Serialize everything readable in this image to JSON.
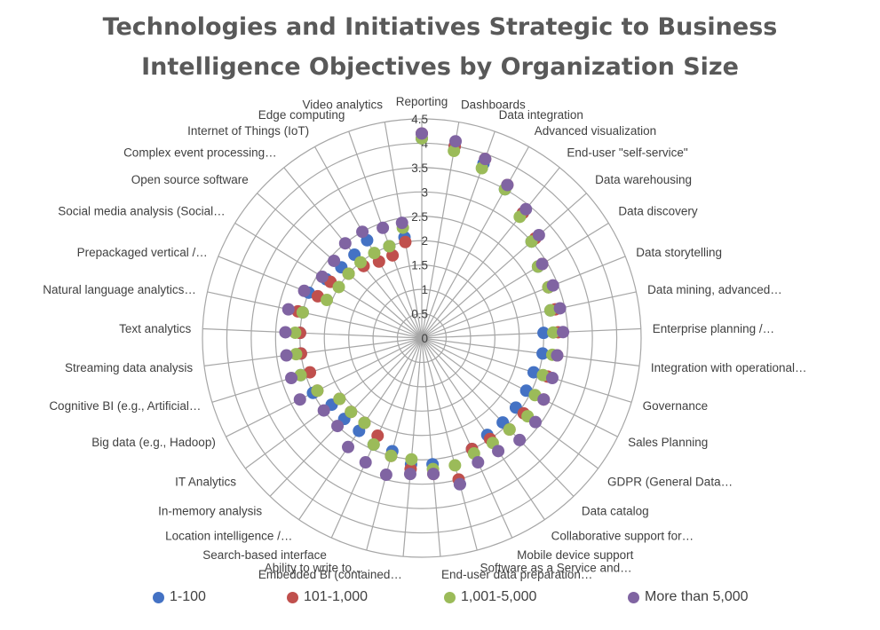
{
  "chart_data": {
    "type": "radar",
    "title": [
      "Technologies and Initiatives Strategic to Business",
      "Intelligence Objectives by Organization Size"
    ],
    "rlim": [
      0,
      4.5
    ],
    "ticks": [
      "0",
      "0.5",
      "1",
      "1.5",
      "2",
      "2.5",
      "3",
      "3.5",
      "4",
      "4.5"
    ],
    "categories": [
      "Reporting",
      "Dashboards",
      "Data integration",
      "Advanced visualization",
      "End-user \"self-service\"",
      "Data warehousing",
      "Data discovery",
      "Data storytelling",
      "Data mining, advanced…",
      "Enterprise planning /…",
      "Integration with operational…",
      "Governance",
      "Sales Planning",
      "GDPR (General Data…",
      "Data catalog",
      "Collaborative support for…",
      "Mobile device support",
      "Software as a Service and…",
      "End-user data preparation…",
      "Embedded BI (contained…",
      "Ability to write to…",
      "Search-based interface",
      "Location intelligence /…",
      "In-memory analysis",
      "IT Analytics",
      "Big data (e.g., Hadoop)",
      "Cognitive BI (e.g., Artificial…",
      "Streaming data analysis",
      "Text analytics",
      "Natural language analytics…",
      "Prepackaged vertical /…",
      "Social media analysis (Social…",
      "Open source software",
      "Complex event processing…",
      "Internet of Things (IoT)",
      "Edge computing",
      "Video analytics"
    ],
    "series": [
      {
        "name": "1-100",
        "color": "#4472C4",
        "values": [
          4.1,
          4.0,
          3.8,
          3.5,
          3.3,
          3.0,
          2.8,
          2.8,
          2.7,
          2.5,
          2.5,
          2.4,
          2.4,
          2.4,
          2.4,
          2.4,
          2.5,
          3.1,
          2.6,
          2.6,
          2.4,
          2.4,
          2.3,
          2.3,
          2.3,
          2.5,
          2.6,
          2.5,
          2.5,
          2.5,
          2.5,
          2.3,
          2.2,
          2.2,
          2.3,
          2.0,
          2.1
        ]
      },
      {
        "name": "101-1,000",
        "color": "#C0504D",
        "values": [
          4.2,
          4.0,
          3.9,
          3.6,
          3.3,
          3.1,
          2.9,
          2.8,
          2.8,
          2.8,
          2.8,
          2.7,
          2.8,
          2.6,
          2.6,
          2.5,
          2.5,
          3.0,
          2.8,
          2.7,
          2.5,
          2.2,
          2.1,
          2.1,
          2.1,
          2.4,
          2.4,
          2.5,
          2.5,
          2.6,
          2.3,
          2.2,
          2.0,
          1.9,
          1.8,
          1.8,
          2.0
        ]
      },
      {
        "name": "1,001-5,000",
        "color": "#9BBB59",
        "values": [
          4.1,
          3.9,
          3.7,
          3.5,
          3.2,
          3.0,
          2.8,
          2.8,
          2.7,
          2.7,
          2.7,
          2.6,
          2.6,
          2.7,
          2.6,
          2.6,
          2.6,
          2.7,
          2.7,
          2.5,
          2.5,
          2.4,
          2.1,
          2.1,
          2.1,
          2.4,
          2.6,
          2.6,
          2.6,
          2.5,
          2.1,
          2.0,
          2.0,
          2.0,
          2.0,
          2.0,
          2.3
        ]
      },
      {
        "name": "More than 5,000",
        "color": "#8064A2",
        "values": [
          4.2,
          4.1,
          3.9,
          3.6,
          3.4,
          3.2,
          2.9,
          2.9,
          2.9,
          2.9,
          2.8,
          2.8,
          2.8,
          2.9,
          2.9,
          2.8,
          2.8,
          3.1,
          2.8,
          2.8,
          2.9,
          2.8,
          2.7,
          2.5,
          2.5,
          2.8,
          2.8,
          2.8,
          2.8,
          2.8,
          2.6,
          2.4,
          2.4,
          2.5,
          2.5,
          2.4,
          2.4
        ]
      }
    ],
    "legend_position": "bottom",
    "grid": true
  }
}
